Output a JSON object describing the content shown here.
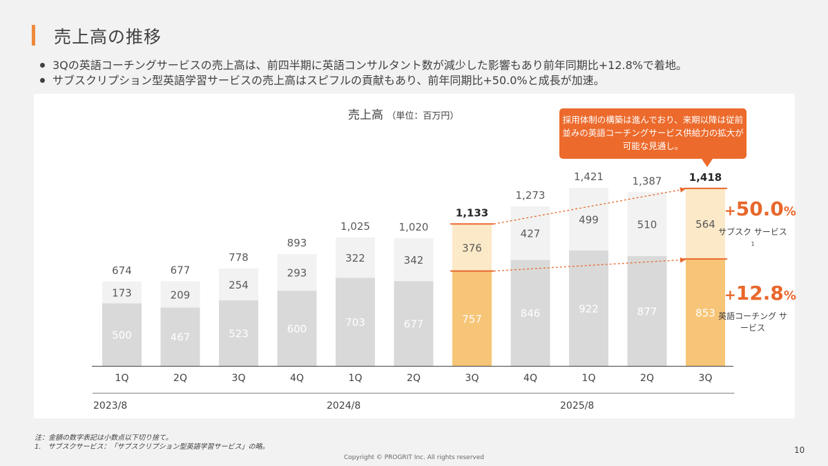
{
  "header": {
    "title": "売上高の推移",
    "bullets": [
      "3Qの英語コーチングサービスの売上高は、前四半期に英語コンサルタント数が減少した影響もあり前年同期比+12.8%で着地。",
      "サブスクリプション型英語学習サービスの売上高はスピフルの貢献もあり、前年同期比+50.0%と成長が加速。"
    ]
  },
  "chart_data": {
    "type": "bar",
    "stacked": true,
    "title": "売上高",
    "unit": "（単位：百万円）",
    "categories": [
      "1Q",
      "2Q",
      "3Q",
      "4Q",
      "1Q",
      "2Q",
      "3Q",
      "4Q",
      "1Q",
      "2Q",
      "3Q"
    ],
    "groups": [
      {
        "label": "2023/8",
        "count": 4
      },
      {
        "label": "2024/8",
        "count": 4
      },
      {
        "label": "2025/8",
        "count": 3
      }
    ],
    "series": [
      {
        "name": "英語コーチングサービス",
        "values": [
          500,
          467,
          523,
          600,
          703,
          677,
          757,
          846,
          922,
          877,
          853
        ]
      },
      {
        "name": "サブスクサービス",
        "values": [
          173,
          209,
          254,
          293,
          322,
          342,
          376,
          427,
          499,
          510,
          564
        ]
      }
    ],
    "totals": [
      "674",
      "677",
      "778",
      "893",
      "1,025",
      "1,020",
      "1,133",
      "1,273",
      "1,421",
      "1,387",
      "1,418"
    ],
    "ylim": [
      0,
      1500
    ],
    "highlight_indices": [
      6,
      10
    ],
    "colors": {
      "coaching": "#d9d9d9",
      "subsc": "#f2f2f2",
      "highlight_coaching": "#f7c577",
      "highlight_subsc": "#fce9c8",
      "accent": "#e8672b",
      "axis": "#404040"
    },
    "annotations": {
      "callout": "採用体制の構築は進んでおり、来期以降は従前並みの英語コーチングサービス供給力の拡大が可能な見通し。",
      "subsc_growth": {
        "plus": "+",
        "num": "50.0",
        "pct": "%"
      },
      "coaching_growth": {
        "plus": "+",
        "num": "12.8",
        "pct": "%"
      },
      "subsc_label": "サブスク サービス",
      "subsc_label_sup": "1",
      "coaching_label": "英語コーチング サービス"
    }
  },
  "footer": {
    "note1": "注：金額の数字表記は小数点以下切り捨て。",
    "note2": "1.　サブスクサービス：「サブスクリプション型英語学習サービス」の略。",
    "copyright": "Copyright © PROGRIT Inc. All rights reserved",
    "page": "10"
  }
}
